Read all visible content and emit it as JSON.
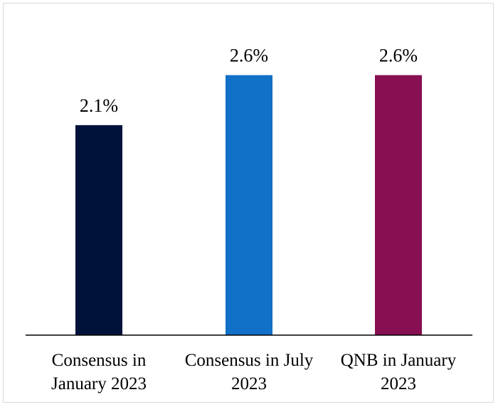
{
  "chart_data": {
    "type": "bar",
    "title": "",
    "xlabel": "",
    "ylabel": "",
    "categories": [
      "Consensus in January 2023",
      "Consensus in July 2023",
      "QNB in January 2023"
    ],
    "category_lines": [
      [
        "Consensus in",
        "January 2023"
      ],
      [
        "Consensus in July",
        "2023"
      ],
      [
        "QNB in January",
        "2023"
      ]
    ],
    "values": [
      2.1,
      2.6,
      2.6
    ],
    "data_labels": [
      "2.1%",
      "2.6%",
      "2.6%"
    ],
    "colors": [
      "#00123a",
      "#1170c8",
      "#870f52"
    ],
    "ylim": [
      0,
      2.96
    ],
    "grid": false,
    "legend": "none",
    "y_axis_visible": false
  }
}
